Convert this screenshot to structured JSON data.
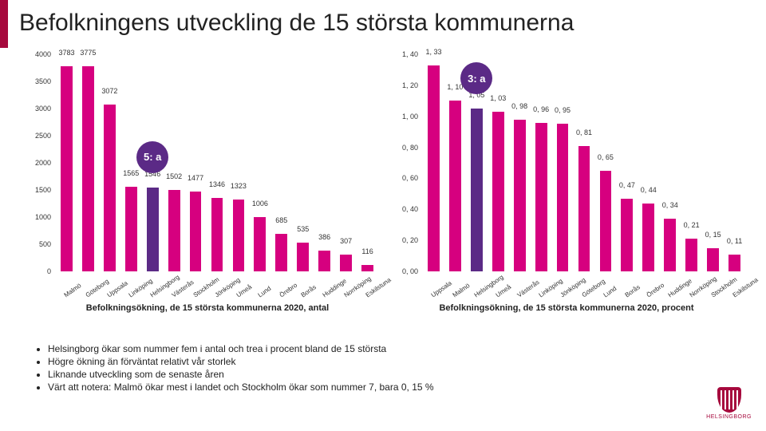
{
  "title": "Befolkningens utveckling de 15 största kommunerna",
  "chart_left": {
    "type": "bar",
    "ylim": [
      0,
      4000
    ],
    "ystep": 500,
    "bar_color": "#d6007f",
    "highlight_color": "#5b2a86",
    "highlight_index": 4,
    "badge": "5: a",
    "caption": "Befolkningsökning, de 15 största kommunerna 2020, antal",
    "categories": [
      "Malmö",
      "Göteborg",
      "Uppsala",
      "Linköping",
      "Helsingborg",
      "Västerås",
      "Stockholm",
      "Jönköping",
      "Umeå",
      "Lund",
      "Örebro",
      "Borås",
      "Huddinge",
      "Norrköping",
      "Eskilstuna"
    ],
    "values": [
      3783,
      3775,
      3072,
      1565,
      1546,
      1502,
      1477,
      1346,
      1323,
      1006,
      685,
      535,
      386,
      307,
      116
    ],
    "value_labels": [
      "3783",
      "3775",
      "3072",
      "1565",
      "1546",
      "1502",
      "1477",
      "1346",
      "1323",
      "1006",
      "685",
      "535",
      "386",
      "307",
      "116"
    ]
  },
  "chart_right": {
    "type": "bar",
    "ylim": [
      0,
      1.4
    ],
    "ystep": 0.2,
    "bar_color": "#d6007f",
    "highlight_color": "#5b2a86",
    "highlight_index": 2,
    "badge": "3: a",
    "caption": "Befolkningsökning, de 15 största kommunerna 2020, procent",
    "categories": [
      "Uppsala",
      "Malmö",
      "Helsingborg",
      "Umeå",
      "Västerås",
      "Linköping",
      "Jönköping",
      "Göteborg",
      "Lund",
      "Borås",
      "Örebro",
      "Huddinge",
      "Norrköping",
      "Stockholm",
      "Eskilstuna"
    ],
    "values": [
      1.33,
      1.1,
      1.05,
      1.03,
      0.98,
      0.96,
      0.95,
      0.81,
      0.65,
      0.47,
      0.44,
      0.34,
      0.21,
      0.15,
      0.11
    ],
    "value_labels": [
      "1, 33",
      "1, 10",
      "1, 05",
      "1, 03",
      "0, 98",
      "0, 96",
      "0, 95",
      "0, 81",
      "0, 65",
      "0, 47",
      "0, 44",
      "0, 34",
      "0, 21",
      "0, 15",
      "0, 11"
    ]
  },
  "right_yticklabels": [
    "0, 00",
    "0, 20",
    "0, 40",
    "0, 60",
    "0, 80",
    "1, 00",
    "1, 20",
    "1, 40"
  ],
  "bullets": [
    "Helsingborg ökar som nummer fem i antal och trea i procent bland de 15 största",
    "Högre ökning än förväntat relativt vår storlek",
    "Liknande utveckling som de senaste åren",
    "Värt att notera: Malmö ökar mest i landet och Stockholm ökar som nummer 7, bara 0, 15 %"
  ],
  "logo_text": "HELSINGBORG"
}
